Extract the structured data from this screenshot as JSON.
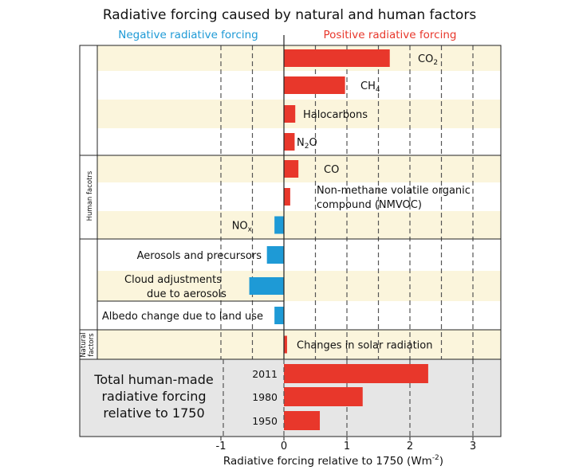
{
  "chart_data": {
    "type": "bar",
    "orientation": "horizontal",
    "title": "Radiative forcing caused by natural and human factors",
    "xlabel": "Radiative forcing relative to 1750 (Wm",
    "xlabel_superscript": "-2",
    "xlim": [
      -1,
      3.5
    ],
    "xticks": [
      -1,
      0,
      1,
      2,
      3
    ],
    "grid": "vertical dashed lines every 0.5",
    "legend": [
      {
        "name": "Negative radiative forcing",
        "color": "#1e9ad6"
      },
      {
        "name": "Positive radiative forcing",
        "color": "#e8372b"
      }
    ],
    "groups": [
      {
        "name": "Human facotrs",
        "categories": [
          "CO2",
          "CH4",
          "Halocarbons",
          "N2O",
          "CO",
          "NMVOC",
          "NOx",
          "Aerosols and precursors",
          "Cloud adjustments due to aerosols",
          "Albedo change due to land use"
        ]
      },
      {
        "name_line1": "Natural",
        "name_line2": "factors",
        "categories": [
          "Changes in solar radiation"
        ]
      }
    ],
    "factors": [
      {
        "label": "CO",
        "sub": "2",
        "value": 1.68
      },
      {
        "label": "CH",
        "sub": "4",
        "value": 0.97
      },
      {
        "label": "Halocarbons",
        "value": 0.18
      },
      {
        "label": "N",
        "sub": "2",
        "label_after": "O",
        "value": 0.17
      },
      {
        "label": "CO",
        "value": 0.23
      },
      {
        "label": "Non-methane volatile organic",
        "label_line2": "compound (NMVOC)",
        "value": 0.1
      },
      {
        "label": "NO",
        "sub": "x",
        "value": -0.15
      },
      {
        "label": "Aerosols and precursors",
        "value": -0.27
      },
      {
        "label": "Cloud adjustments",
        "label_line2": "due to aerosols",
        "value": -0.55
      },
      {
        "label": "Albedo change due to land use",
        "value": -0.15
      },
      {
        "label": "Changes in solar radiation",
        "value": 0.05
      }
    ],
    "totals": {
      "label_lines": [
        "Total human-made",
        "radiative forcing",
        "relative to 1750"
      ],
      "years": [
        "2011",
        "1980",
        "1950"
      ],
      "values": [
        2.29,
        1.25,
        0.57
      ]
    },
    "colors": {
      "positive": "#e8372b",
      "negative": "#1e9ad6",
      "band": "#fbf5dc",
      "totals_bg": "#e6e6e6"
    }
  }
}
